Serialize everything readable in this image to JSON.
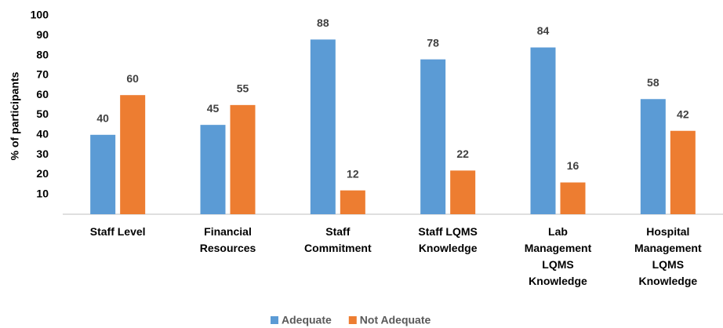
{
  "chart_data": {
    "type": "bar",
    "y_label": "% of participants",
    "categories": [
      "Staff Level",
      "Financial Resources",
      "Staff Commitment",
      "Staff LQMS Knowledge",
      "Lab Management LQMS Knowledge",
      "Hospital Management LQMS Knowledge"
    ],
    "series": [
      {
        "name": "Adequate",
        "color": "#5b9bd5",
        "values": [
          40,
          45,
          88,
          78,
          84,
          58
        ]
      },
      {
        "name": "Not Adequate",
        "color": "#ed7d31",
        "values": [
          60,
          55,
          12,
          22,
          16,
          42
        ]
      }
    ],
    "ylim": [
      0,
      100
    ],
    "yticks": [
      10,
      20,
      30,
      40,
      50,
      60,
      70,
      80,
      90,
      100
    ],
    "grid": false,
    "legend": "bottom"
  }
}
